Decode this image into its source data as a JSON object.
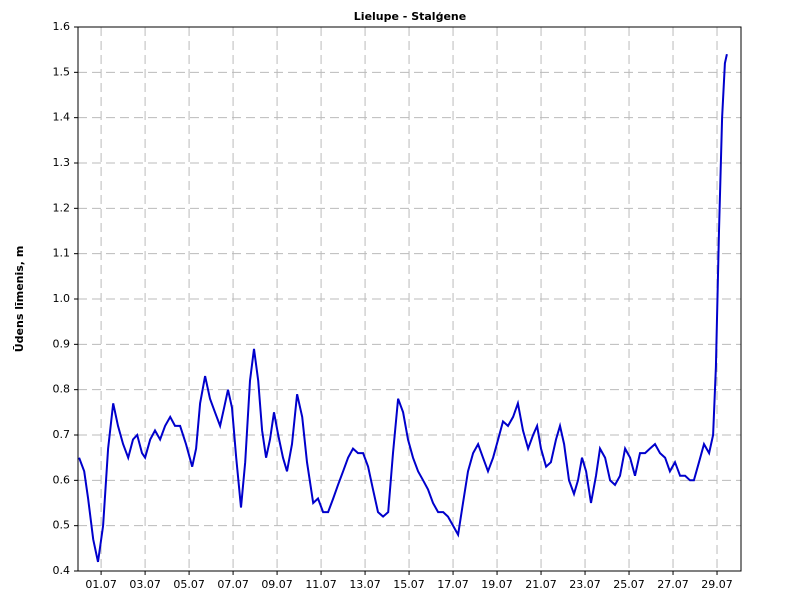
{
  "chart_data": {
    "type": "line",
    "title": "Lielupe - Stalģene",
    "y_label": "Ūdens līmenis, m",
    "x": [
      0.0,
      0.23,
      0.41,
      0.64,
      0.86,
      1.09,
      1.32,
      1.55,
      1.77,
      2.0,
      2.23,
      2.45,
      2.64,
      2.86,
      3.0,
      3.23,
      3.45,
      3.68,
      3.91,
      4.14,
      4.36,
      4.59,
      4.86,
      5.14,
      5.32,
      5.5,
      5.73,
      5.95,
      6.18,
      6.41,
      6.59,
      6.77,
      6.95,
      7.14,
      7.36,
      7.55,
      7.77,
      7.95,
      8.14,
      8.32,
      8.5,
      8.68,
      8.86,
      9.05,
      9.27,
      9.45,
      9.68,
      9.91,
      10.14,
      10.36,
      10.64,
      10.86,
      11.09,
      11.32,
      11.55,
      11.77,
      12.0,
      12.23,
      12.45,
      12.68,
      12.91,
      13.14,
      13.36,
      13.59,
      13.82,
      14.05,
      14.27,
      14.5,
      14.73,
      14.95,
      15.18,
      15.41,
      15.64,
      15.86,
      16.09,
      16.32,
      16.55,
      16.77,
      17.0,
      17.23,
      17.45,
      17.68,
      17.91,
      18.14,
      18.36,
      18.59,
      18.82,
      19.05,
      19.27,
      19.5,
      19.73,
      19.95,
      20.18,
      20.41,
      20.64,
      20.82,
      21.0,
      21.23,
      21.45,
      21.68,
      21.86,
      22.05,
      22.27,
      22.5,
      22.68,
      22.86,
      23.05,
      23.27,
      23.5,
      23.68,
      23.91,
      24.14,
      24.36,
      24.59,
      24.82,
      25.05,
      25.27,
      25.5,
      25.73,
      25.95,
      26.18,
      26.41,
      26.64,
      26.86,
      27.09,
      27.32,
      27.55,
      27.77,
      27.95,
      28.18,
      28.41,
      28.64,
      28.82,
      28.95,
      29.09,
      29.23,
      29.36,
      29.45
    ],
    "series": [
      {
        "name": "Lielupe - Stalģene",
        "color": "#0000cc",
        "values": [
          0.65,
          0.62,
          0.56,
          0.47,
          0.42,
          0.5,
          0.67,
          0.77,
          0.72,
          0.68,
          0.65,
          0.69,
          0.7,
          0.66,
          0.65,
          0.69,
          0.71,
          0.69,
          0.72,
          0.74,
          0.72,
          0.72,
          0.68,
          0.63,
          0.67,
          0.77,
          0.83,
          0.78,
          0.75,
          0.72,
          0.76,
          0.8,
          0.76,
          0.65,
          0.54,
          0.64,
          0.82,
          0.89,
          0.82,
          0.71,
          0.65,
          0.69,
          0.75,
          0.7,
          0.65,
          0.62,
          0.68,
          0.79,
          0.74,
          0.64,
          0.55,
          0.56,
          0.53,
          0.53,
          0.56,
          0.59,
          0.62,
          0.65,
          0.67,
          0.66,
          0.66,
          0.63,
          0.58,
          0.53,
          0.52,
          0.53,
          0.66,
          0.78,
          0.75,
          0.69,
          0.65,
          0.62,
          0.6,
          0.58,
          0.55,
          0.53,
          0.53,
          0.52,
          0.5,
          0.48,
          0.55,
          0.62,
          0.66,
          0.68,
          0.65,
          0.62,
          0.65,
          0.69,
          0.73,
          0.72,
          0.74,
          0.77,
          0.71,
          0.67,
          0.7,
          0.72,
          0.67,
          0.63,
          0.64,
          0.69,
          0.72,
          0.68,
          0.6,
          0.57,
          0.6,
          0.65,
          0.62,
          0.55,
          0.61,
          0.67,
          0.65,
          0.6,
          0.59,
          0.61,
          0.67,
          0.65,
          0.61,
          0.66,
          0.66,
          0.67,
          0.68,
          0.66,
          0.65,
          0.62,
          0.64,
          0.61,
          0.61,
          0.6,
          0.6,
          0.64,
          0.68,
          0.66,
          0.7,
          0.85,
          1.15,
          1.4,
          1.52,
          1.54
        ]
      }
    ],
    "xlim": [
      -0.05,
      30.09
    ],
    "xticks": [
      {
        "value": 1,
        "label": "01.07"
      },
      {
        "value": 3,
        "label": "03.07"
      },
      {
        "value": 5,
        "label": "05.07"
      },
      {
        "value": 7,
        "label": "07.07"
      },
      {
        "value": 9,
        "label": "09.07"
      },
      {
        "value": 11,
        "label": "11.07"
      },
      {
        "value": 13,
        "label": "13.07"
      },
      {
        "value": 15,
        "label": "15.07"
      },
      {
        "value": 17,
        "label": "17.07"
      },
      {
        "value": 19,
        "label": "19.07"
      },
      {
        "value": 21,
        "label": "21.07"
      },
      {
        "value": 23,
        "label": "23.07"
      },
      {
        "value": 25,
        "label": "25.07"
      },
      {
        "value": 27,
        "label": "27.07"
      },
      {
        "value": 29,
        "label": "29.07"
      }
    ],
    "ylim": [
      0.4,
      1.6
    ],
    "yticks": [
      0.4,
      0.5,
      0.6,
      0.7,
      0.8,
      0.9,
      {
        "value": 1,
        "label": "1.0"
      },
      1.1,
      1.2,
      1.3,
      1.4,
      1.5,
      1.6
    ],
    "grid": true
  }
}
